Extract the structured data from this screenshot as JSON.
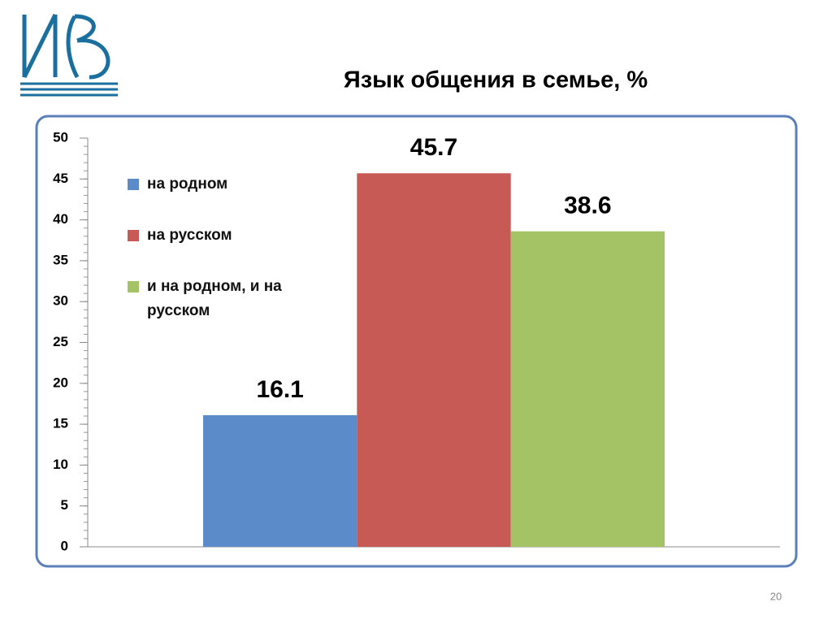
{
  "chart_data": {
    "type": "bar",
    "title": "Язык общения в семье, %",
    "categories": [
      null
    ],
    "series": [
      {
        "name": "на родном",
        "color": "#5b8bc9",
        "values": [
          16.1
        ]
      },
      {
        "name": "на русском",
        "color": "#c85a55",
        "values": [
          45.7
        ]
      },
      {
        "name": "и на родном, и на русском",
        "color": "#a4c364",
        "values": [
          38.6
        ]
      }
    ],
    "ylim": [
      0,
      50
    ],
    "yticks": [
      0,
      5,
      10,
      15,
      20,
      25,
      30,
      35,
      40,
      45,
      50
    ]
  },
  "slide_number": "20"
}
